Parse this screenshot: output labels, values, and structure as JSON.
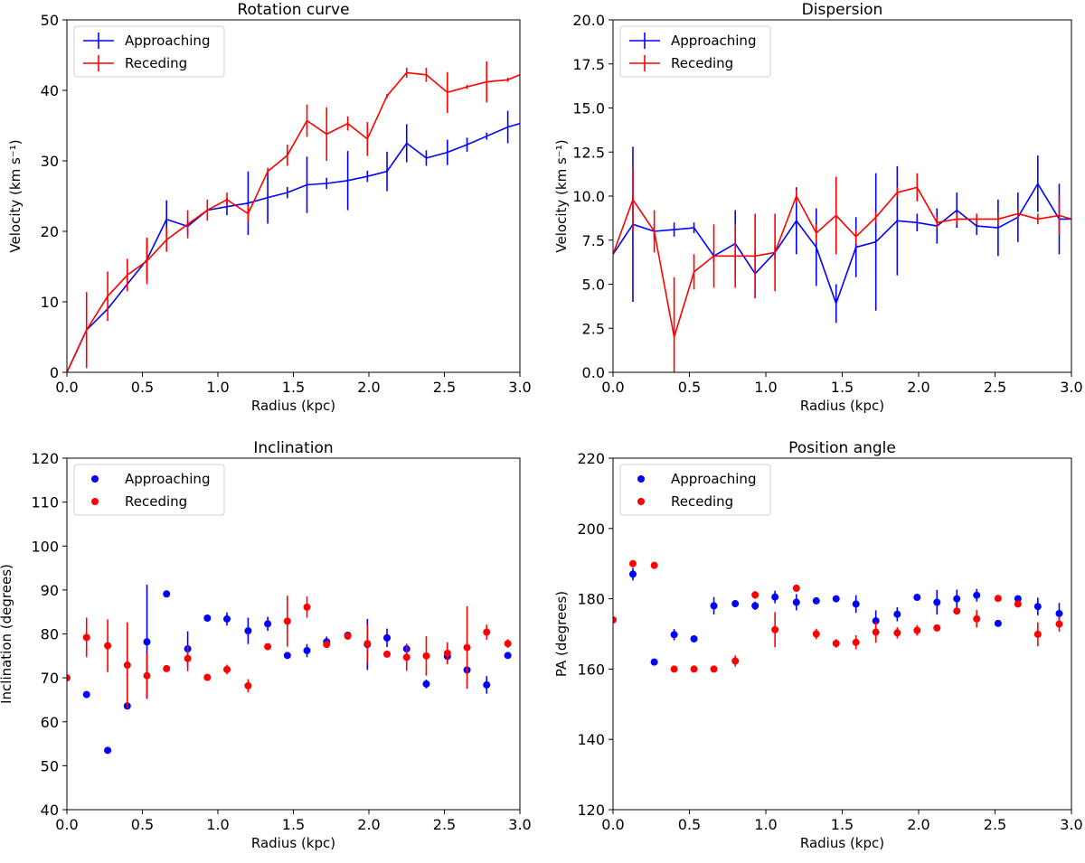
{
  "chart_data": [
    {
      "type": "line",
      "title": "Rotation curve",
      "xlabel": "Radius (kpc)",
      "ylabel": "Velocity (km s⁻¹)",
      "xlim": [
        0,
        3.0
      ],
      "ylim": [
        0,
        50
      ],
      "xticks": [
        "0.0",
        "0.5",
        "1.0",
        "1.5",
        "2.0",
        "2.5",
        "3.0"
      ],
      "yticks": [
        "0",
        "10",
        "20",
        "30",
        "40",
        "50"
      ],
      "legend": "top-left",
      "series": [
        {
          "name": "Approaching",
          "color": "#0000ff",
          "x": [
            0,
            0.13,
            0.27,
            0.4,
            0.53,
            0.66,
            0.8,
            0.93,
            1.06,
            1.2,
            1.33,
            1.46,
            1.59,
            1.72,
            1.86,
            1.99,
            2.12,
            2.25,
            2.38,
            2.52,
            2.65,
            2.78,
            2.92,
            3.0
          ],
          "y": [
            0,
            6,
            9,
            12.5,
            16,
            21.7,
            20.7,
            23,
            23.5,
            24,
            24.8,
            25.5,
            26.6,
            26.8,
            27.2,
            27.8,
            28.5,
            32.5,
            30.4,
            31.2,
            32.3,
            33.5,
            34.8,
            35.3
          ],
          "err": [
            0,
            0,
            0,
            0,
            3,
            2.7,
            1,
            0,
            1.2,
            4.5,
            3.7,
            0.8,
            4,
            0.8,
            4.2,
            0.8,
            2.8,
            2.7,
            1.1,
            1.8,
            1,
            0.5,
            2.3,
            0
          ]
        },
        {
          "name": "Receding",
          "color": "#ff0000",
          "x": [
            0,
            0.13,
            0.27,
            0.4,
            0.53,
            0.66,
            0.8,
            0.93,
            1.06,
            1.2,
            1.33,
            1.46,
            1.59,
            1.72,
            1.86,
            1.99,
            2.12,
            2.25,
            2.38,
            2.52,
            2.65,
            2.78,
            2.92,
            3.0
          ],
          "y": [
            0,
            6,
            10.8,
            13.8,
            15.8,
            18.8,
            21,
            23,
            24.5,
            22.5,
            28.5,
            30.8,
            35.7,
            33.8,
            35.3,
            33.1,
            39.2,
            42.5,
            42.2,
            39.7,
            40.5,
            41.2,
            41.5,
            42.2
          ],
          "err": [
            0,
            5.4,
            3.5,
            2.3,
            3.3,
            1.7,
            2,
            1.5,
            1,
            1.2,
            0.5,
            1.5,
            2.3,
            3.8,
            1,
            2.4,
            0.3,
            0.7,
            1,
            2.9,
            0.3,
            2.9,
            0.3,
            0
          ]
        }
      ]
    },
    {
      "type": "line",
      "title": "Dispersion",
      "xlabel": "Radius (kpc)",
      "ylabel": "Velocity (km s⁻¹)",
      "xlim": [
        0,
        3.0
      ],
      "ylim": [
        0,
        20
      ],
      "xticks": [
        "0.0",
        "0.5",
        "1.0",
        "1.5",
        "2.0",
        "2.5",
        "3.0"
      ],
      "yticks": [
        "0.0",
        "2.5",
        "5.0",
        "7.5",
        "10.0",
        "12.5",
        "15.0",
        "17.5",
        "20.0"
      ],
      "legend": "top-left",
      "series": [
        {
          "name": "Approaching",
          "color": "#0000ff",
          "x": [
            0,
            0.13,
            0.27,
            0.4,
            0.53,
            0.66,
            0.8,
            0.93,
            1.06,
            1.2,
            1.33,
            1.46,
            1.59,
            1.72,
            1.86,
            1.99,
            2.12,
            2.25,
            2.38,
            2.52,
            2.65,
            2.78,
            2.92,
            3.0
          ],
          "y": [
            6.7,
            8.4,
            8,
            8.1,
            8.2,
            6.6,
            7.3,
            5.6,
            6.8,
            8.6,
            7.1,
            3.9,
            7.1,
            7.4,
            8.6,
            8.5,
            8.3,
            9.2,
            8.3,
            8.2,
            8.8,
            10.7,
            8.7,
            8.7
          ],
          "err": [
            0,
            4.4,
            0.4,
            0.4,
            0.3,
            0.3,
            1.9,
            1.4,
            0.4,
            1.9,
            2.2,
            1.1,
            1.7,
            3.9,
            3.1,
            0.5,
            1,
            1,
            0.5,
            1.6,
            1.4,
            1.6,
            2,
            0
          ]
        },
        {
          "name": "Receding",
          "color": "#ff0000",
          "x": [
            0,
            0.13,
            0.27,
            0.4,
            0.53,
            0.66,
            0.8,
            0.93,
            1.06,
            1.2,
            1.33,
            1.46,
            1.59,
            1.72,
            1.86,
            1.99,
            2.12,
            2.25,
            2.38,
            2.52,
            2.65,
            2.78,
            2.92,
            3.0
          ],
          "y": [
            6.7,
            9.8,
            8,
            2,
            5.7,
            6.6,
            6.6,
            6.6,
            6.8,
            10,
            7.9,
            8.9,
            7.7,
            8.8,
            10.2,
            10.5,
            8.5,
            8.7,
            8.7,
            8.7,
            9,
            8.7,
            8.9,
            8.7
          ],
          "err": [
            0,
            1.8,
            1.2,
            3.4,
            1,
            1.8,
            1.8,
            2.4,
            2.2,
            0.4,
            0.5,
            2.2,
            0.4,
            0.3,
            0.3,
            0.8,
            0.3,
            0.3,
            0.3,
            0.3,
            0.3,
            0.3,
            1.1,
            0
          ]
        }
      ]
    },
    {
      "type": "scatter",
      "title": "Inclination",
      "xlabel": "Radius (kpc)",
      "ylabel": "Inclination (degrees)",
      "xlim": [
        0,
        3.0
      ],
      "ylim": [
        40,
        120
      ],
      "xticks": [
        "0.0",
        "0.5",
        "1.0",
        "1.5",
        "2.0",
        "2.5",
        "3.0"
      ],
      "yticks": [
        "40",
        "50",
        "60",
        "70",
        "80",
        "90",
        "100",
        "110",
        "120"
      ],
      "legend": "top-left",
      "series": [
        {
          "name": "Approaching",
          "color": "#0000ff",
          "x": [
            0.13,
            0.27,
            0.4,
            0.53,
            0.66,
            0.8,
            0.93,
            1.06,
            1.2,
            1.33,
            1.46,
            1.59,
            1.72,
            1.86,
            1.99,
            2.12,
            2.25,
            2.38,
            2.52,
            2.65,
            2.78,
            2.92
          ],
          "y": [
            66.2,
            53.5,
            63.6,
            78.2,
            89.1,
            76.6,
            83.6,
            83.4,
            80.7,
            82.3,
            75.1,
            76.2,
            78.2,
            79.7,
            77.6,
            79.1,
            76.6,
            68.6,
            74.9,
            71.8,
            68.4,
            75.1
          ],
          "err": [
            0,
            0,
            0,
            13,
            0.6,
            4,
            0.5,
            1.5,
            3,
            1.6,
            0,
            1.5,
            1.2,
            0.6,
            5.8,
            2.1,
            0.6,
            1,
            1.3,
            0.6,
            2,
            0
          ]
        },
        {
          "name": "Receding",
          "color": "#ff0000",
          "x": [
            0,
            0.13,
            0.27,
            0.4,
            0.53,
            0.66,
            0.8,
            0.93,
            1.06,
            1.2,
            1.33,
            1.46,
            1.59,
            1.72,
            1.86,
            1.99,
            2.12,
            2.25,
            2.38,
            2.52,
            2.65,
            2.78,
            2.92
          ],
          "y": [
            70,
            79.2,
            77.3,
            72.9,
            70.5,
            72.1,
            74.4,
            70.1,
            71.9,
            68.2,
            77.1,
            82.9,
            86.1,
            77.6,
            79.5,
            77.8,
            75.4,
            74.7,
            75,
            75.6,
            76.9,
            80.4,
            77.8
          ],
          "err": [
            0,
            4.5,
            6,
            9.7,
            5.1,
            0,
            2.9,
            0.8,
            1.1,
            1.5,
            0.6,
            5.8,
            2.4,
            0.6,
            0.8,
            4.3,
            0,
            3.1,
            4.5,
            2.5,
            9.4,
            1.7,
            1
          ]
        }
      ]
    },
    {
      "type": "scatter",
      "title": "Position angle",
      "xlabel": "Radius (kpc)",
      "ylabel": "PA (degrees)",
      "xlim": [
        0,
        3.0
      ],
      "ylim": [
        120,
        220
      ],
      "xticks": [
        "0.0",
        "0.5",
        "1.0",
        "1.5",
        "2.0",
        "2.5",
        "3.0"
      ],
      "yticks": [
        "120",
        "140",
        "160",
        "180",
        "200",
        "220"
      ],
      "legend": "top-left",
      "series": [
        {
          "name": "Approaching",
          "color": "#0000ff",
          "x": [
            0.13,
            0.27,
            0.4,
            0.53,
            0.66,
            0.8,
            0.93,
            1.06,
            1.2,
            1.33,
            1.46,
            1.59,
            1.72,
            1.86,
            1.99,
            2.12,
            2.25,
            2.38,
            2.52,
            2.65,
            2.78,
            2.92
          ],
          "y": [
            187,
            162,
            169.8,
            168.6,
            178,
            178.6,
            178,
            180.5,
            179,
            179.4,
            180,
            178.5,
            173.7,
            175.6,
            180.4,
            179,
            180,
            181,
            173,
            180,
            177.8,
            175.8
          ],
          "err": [
            1.8,
            0,
            1.6,
            0.4,
            2.5,
            1,
            1.2,
            1.8,
            2.3,
            0.5,
            0.5,
            2.5,
            3,
            2,
            0.8,
            3.5,
            2.6,
            1.8,
            0,
            0.6,
            2.5,
            3
          ]
        },
        {
          "name": "Receding",
          "color": "#ff0000",
          "x": [
            0,
            0.13,
            0.27,
            0.4,
            0.53,
            0.66,
            0.8,
            0.93,
            1.06,
            1.2,
            1.33,
            1.46,
            1.59,
            1.72,
            1.86,
            1.99,
            2.12,
            2.25,
            2.38,
            2.52,
            2.65,
            2.78,
            2.92
          ],
          "y": [
            174,
            190,
            189.5,
            160,
            160,
            160,
            162.3,
            181.1,
            171.2,
            183,
            170,
            167.3,
            167.6,
            170.5,
            170.3,
            171,
            171.7,
            176.5,
            174.3,
            180.1,
            178.5,
            169.9,
            172.8
          ],
          "err": [
            0,
            0.6,
            0.4,
            0,
            0,
            0,
            1.6,
            1.1,
            5,
            1,
            1.5,
            1.2,
            2,
            3,
            1.6,
            1.5,
            0.6,
            0.8,
            2.5,
            0,
            0.5,
            3.4,
            2.2
          ]
        }
      ]
    }
  ]
}
